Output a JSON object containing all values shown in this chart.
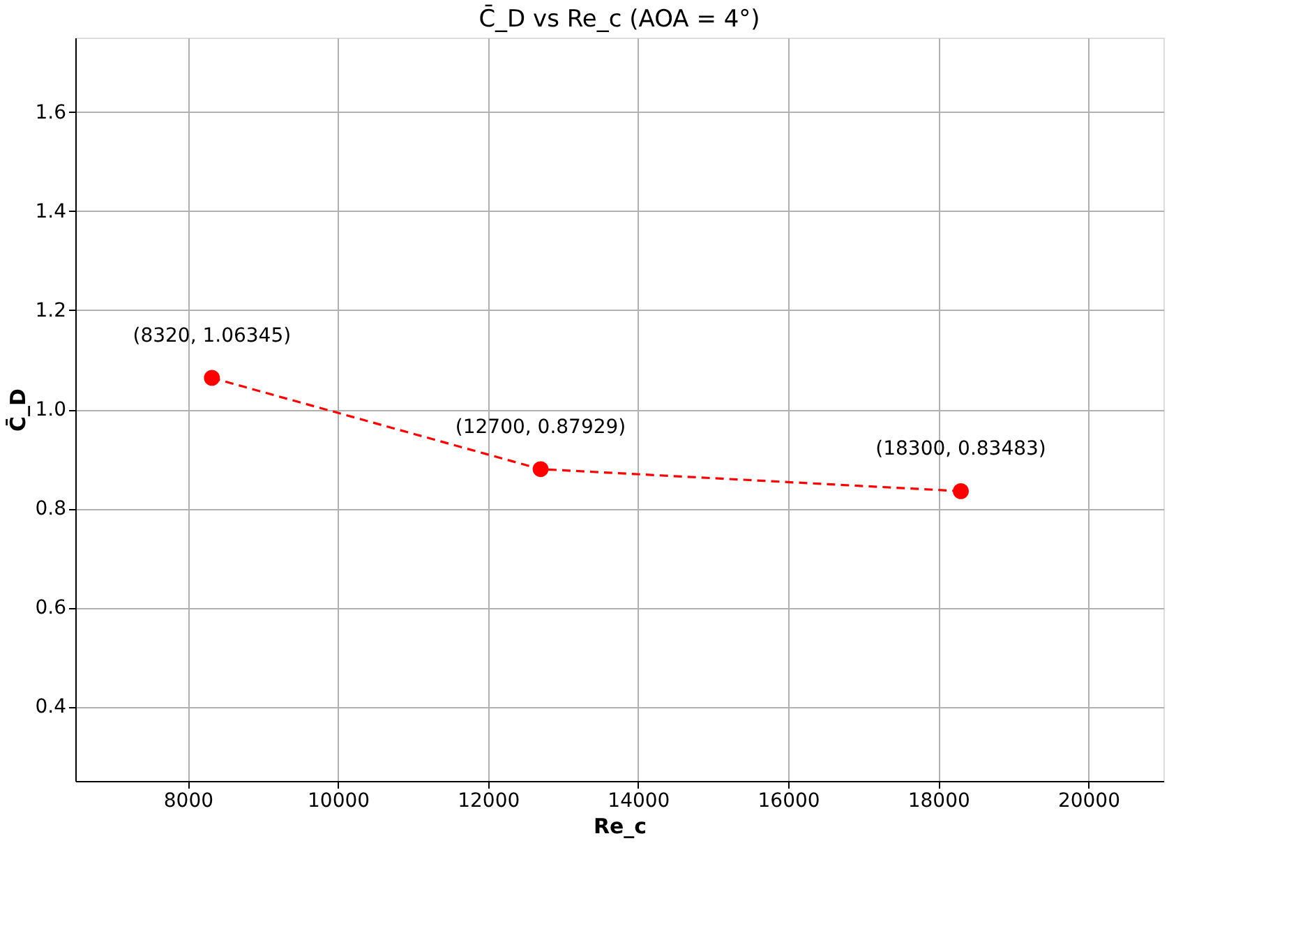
{
  "chart_data": {
    "type": "line",
    "title": "C̄_D vs Re_c (AOA = 4°)",
    "xlabel": "Re_c",
    "ylabel": "C̄_D",
    "x": [
      8320,
      12700,
      18300
    ],
    "series": [
      {
        "color": "#ff0000",
        "values": [
          1.06345,
          0.87929,
          0.83483
        ]
      }
    ],
    "marker": "circle",
    "line_style": "dashed",
    "grid": true,
    "xlim": [
      6500,
      21000
    ],
    "xticks": [
      8000,
      10000,
      12000,
      14000,
      16000,
      18000,
      20000
    ],
    "ylim": [
      0.25,
      1.75
    ],
    "yticks": [
      0.4,
      0.6,
      0.8,
      {
        "value": 1.0,
        "label": "1.0"
      },
      1.2,
      1.4,
      1.6
    ],
    "annotations": [
      {
        "text": "(8320, 1.06345)",
        "x": 8320,
        "y": 1.06345
      },
      {
        "text": "(12700, 0.87929)",
        "x": 12700,
        "y": 0.87929
      },
      {
        "text": "(18300, 0.83483)",
        "x": 18300,
        "y": 0.83483
      }
    ]
  }
}
